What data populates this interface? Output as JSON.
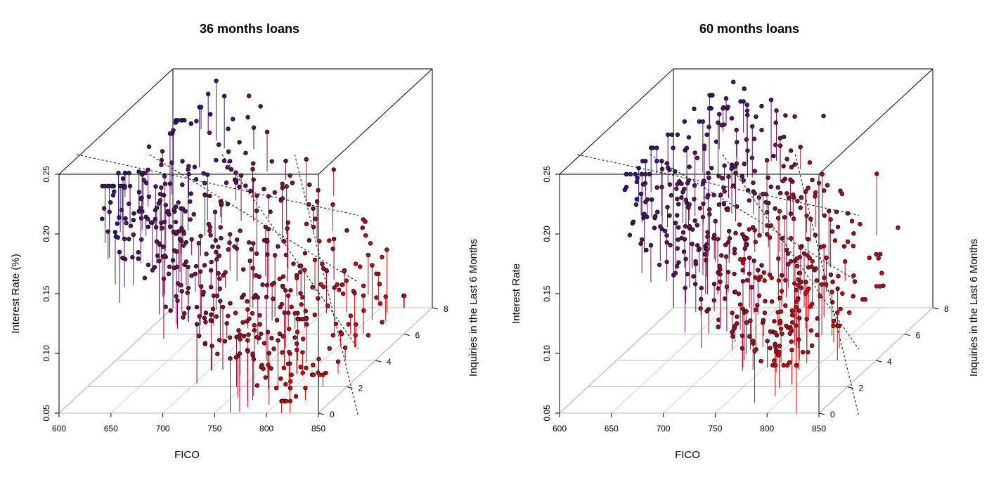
{
  "chart_data": [
    {
      "type": "scatter",
      "title": "36 months loans",
      "xlabel": "FICO",
      "ylabel": "Interest Rate (%)",
      "zlabel": "Inquiries in the Last 6 Months",
      "xticks": [
        "600",
        "650",
        "700",
        "750",
        "800",
        "850"
      ],
      "yticks": [
        "0.05",
        "0.10",
        "0.15",
        "0.20",
        "0.25"
      ],
      "zticks": [
        "0",
        "2",
        "4",
        "6",
        "8"
      ],
      "xlim": [
        600,
        850
      ],
      "ylim": [
        0.05,
        0.25
      ],
      "zlim": [
        0,
        8
      ],
      "grid": true,
      "colors": {
        "low": "#1a1aa0",
        "high": "#e00000",
        "point_fill": "#000000"
      },
      "distribution": {
        "fico_range": [
          640,
          830
        ],
        "rate_range": [
          0.06,
          0.24
        ],
        "inquiries_range": [
          0,
          8
        ],
        "note": "rate decreases as FICO increases"
      }
    },
    {
      "type": "scatter",
      "title": "60 months loans",
      "xlabel": "FICO",
      "ylabel": "Interest Rate",
      "zlabel": "Inquiries in the Last 6 Months",
      "xticks": [
        "600",
        "650",
        "700",
        "750",
        "800",
        "850"
      ],
      "yticks": [
        "0.05",
        "0.10",
        "0.15",
        "0.20",
        "0.25"
      ],
      "zticks": [
        "0",
        "2",
        "4",
        "6",
        "8"
      ],
      "xlim": [
        600,
        850
      ],
      "ylim": [
        0.05,
        0.25
      ],
      "zlim": [
        0,
        8
      ],
      "grid": true,
      "colors": {
        "low": "#1a1aa0",
        "high": "#e00000",
        "point_fill": "#000000"
      },
      "distribution": {
        "fico_range": [
          660,
          830
        ],
        "rate_range": [
          0.09,
          0.25
        ],
        "inquiries_range": [
          0,
          8
        ],
        "note": "rate decreases as FICO increases"
      }
    }
  ]
}
